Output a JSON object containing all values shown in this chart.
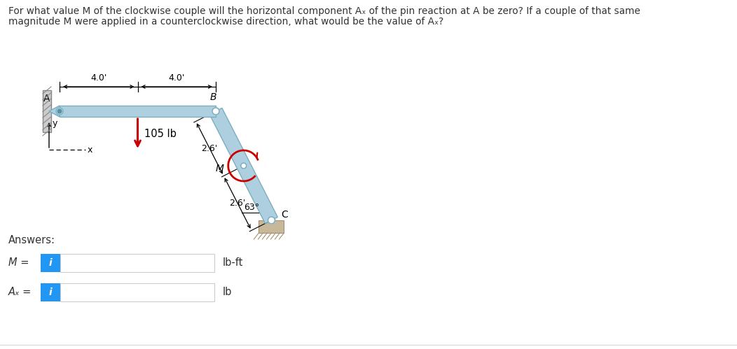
{
  "title_line1": "For what value M of the clockwise couple will the horizontal component Aₓ of the pin reaction at A be zero? If a couple of that same",
  "title_line2": "magnitude M were applied in a counterclockwise direction, what would be the value of Aₓ?",
  "bg_color": "#ffffff",
  "beam_color": "#aecfdf",
  "beam_stroke": "#7aafc0",
  "force_color": "#cc0000",
  "couple_color": "#cc0000",
  "wall_color": "#cccccc",
  "wall_stroke": "#888888",
  "ground_color": "#c8b89a",
  "ground_stroke": "#a89070",
  "answers_label": "Answers:",
  "M_label": "M =",
  "Ax_label": "Aₓ =",
  "M_unit": "lb-ft",
  "Ax_unit": "lb",
  "dim_40_left": "4.0'",
  "dim_40_right": "4.0'",
  "dim_26_top": "2.6'",
  "dim_26_bot": "2.6'",
  "force_label": "105 lb",
  "M_text": "M",
  "angle_label": "63°",
  "A_label": "A",
  "B_label": "B",
  "C_label": "C",
  "axis_y": "y",
  "axis_x": "x",
  "btn_color": "#2196f3",
  "text_color": "#333333",
  "input_border": "#cccccc"
}
